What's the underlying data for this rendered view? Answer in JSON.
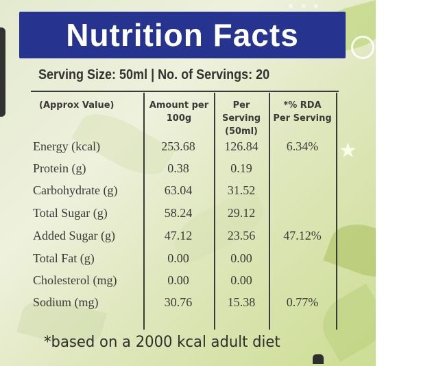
{
  "label": {
    "title": "Nutrition Facts",
    "serving_line": "Serving Size: 50ml | No. of Servings: 20",
    "headers": {
      "col0": "(Approx Value)",
      "col1_line1": "Amount per",
      "col1_line2": "100g",
      "col2_line1": "Per Serving",
      "col2_line2": "(50ml)",
      "col3_line1": "*% RDA",
      "col3_line2": "Per Serving"
    },
    "rows": [
      {
        "nutrient": "Energy (kcal)",
        "per100g": "253.68",
        "per_serving": "126.84",
        "rda": "6.34%"
      },
      {
        "nutrient": "Protein (g)",
        "per100g": "0.38",
        "per_serving": "0.19",
        "rda": ""
      },
      {
        "nutrient": "Carbohydrate (g)",
        "per100g": "63.04",
        "per_serving": "31.52",
        "rda": ""
      },
      {
        "nutrient": "Total Sugar (g)",
        "per100g": "58.24",
        "per_serving": "29.12",
        "rda": ""
      },
      {
        "nutrient": "Added Sugar (g)",
        "per100g": "47.12",
        "per_serving": "23.56",
        "rda": "47.12%"
      },
      {
        "nutrient": "Total Fat (g)",
        "per100g": "0.00",
        "per_serving": "0.00",
        "rda": ""
      },
      {
        "nutrient": "Cholesterol (mg)",
        "per100g": "0.00",
        "per_serving": "0.00",
        "rda": ""
      },
      {
        "nutrient": "Sodium (mg)",
        "per100g": "30.76",
        "per_serving": "15.38",
        "rda": "0.77%"
      }
    ],
    "footnote": "*based on a 2000 kcal adult diet"
  },
  "colors": {
    "banner_bg": "#26348f",
    "banner_text": "#ffffff",
    "ink": "#3b3936",
    "background": "#e4ead0"
  }
}
